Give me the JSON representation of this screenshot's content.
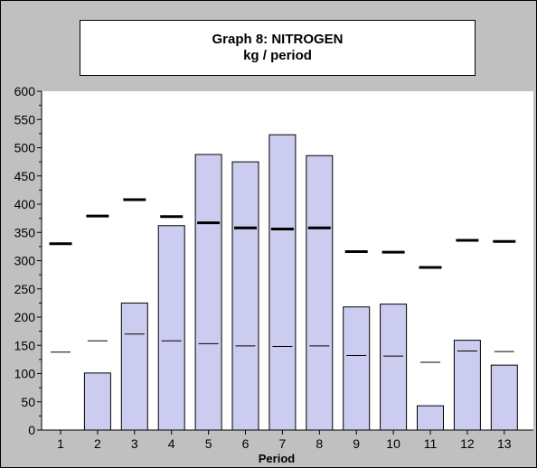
{
  "chart_data": {
    "type": "bar",
    "title": "Graph 8: NITROGEN",
    "subtitle": "kg / period",
    "xlabel": "Period",
    "ylabel": "",
    "categories": [
      "1",
      "2",
      "3",
      "4",
      "5",
      "6",
      "7",
      "8",
      "9",
      "10",
      "11",
      "12",
      "13"
    ],
    "ylim": [
      0,
      600
    ],
    "yticks": [
      0,
      50,
      100,
      150,
      200,
      250,
      300,
      350,
      400,
      450,
      500,
      550,
      600
    ],
    "series": [
      {
        "values": [
          0,
          101,
          225,
          362,
          488,
          475,
          523,
          486,
          218,
          223,
          43,
          159,
          115
        ]
      },
      {
        "values": [
          330,
          379,
          408,
          378,
          367,
          358,
          356,
          358,
          316,
          315,
          288,
          336,
          334
        ]
      },
      {
        "values": [
          138,
          158,
          170,
          158,
          153,
          149,
          148,
          149,
          132,
          131,
          120,
          140,
          139
        ]
      }
    ],
    "colors": {
      "bar_fill": "#ccccf0",
      "bar_stroke": "#000000",
      "plot_bg": "#ffffff",
      "frame_bg": "#c0c0c0"
    }
  }
}
